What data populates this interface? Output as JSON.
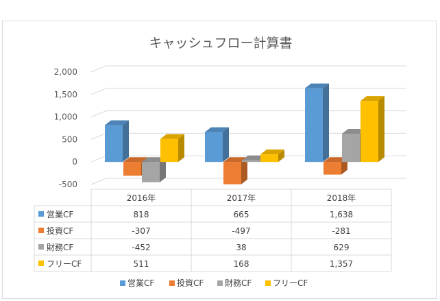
{
  "chart_data": {
    "type": "bar",
    "title": "キャッシュフロー計算書",
    "categories": [
      "2016年",
      "2017年",
      "2018年"
    ],
    "series": [
      {
        "name": "営業CF",
        "color": "#5b9bd5",
        "values": [
          818,
          665,
          1638
        ],
        "labels": [
          "818",
          "665",
          "1,638"
        ]
      },
      {
        "name": "投資CF",
        "color": "#ed7d31",
        "values": [
          -307,
          -497,
          -281
        ],
        "labels": [
          "-307",
          "-497",
          "-281"
        ]
      },
      {
        "name": "財務CF",
        "color": "#a5a5a5",
        "values": [
          -452,
          38,
          629
        ],
        "labels": [
          "-452",
          "38",
          "629"
        ]
      },
      {
        "name": "フリーCF",
        "color": "#ffc000",
        "values": [
          511,
          168,
          1357
        ],
        "labels": [
          "511",
          "168",
          "1,357"
        ]
      }
    ],
    "ylim": [
      -500,
      2000
    ],
    "yticks": [
      "-500",
      "0",
      "500",
      "1,000",
      "1,500",
      "2,000"
    ],
    "ytick_values": [
      -500,
      0,
      500,
      1000,
      1500,
      2000
    ],
    "grid": true,
    "legend_position": "bottom",
    "data_table": true
  }
}
